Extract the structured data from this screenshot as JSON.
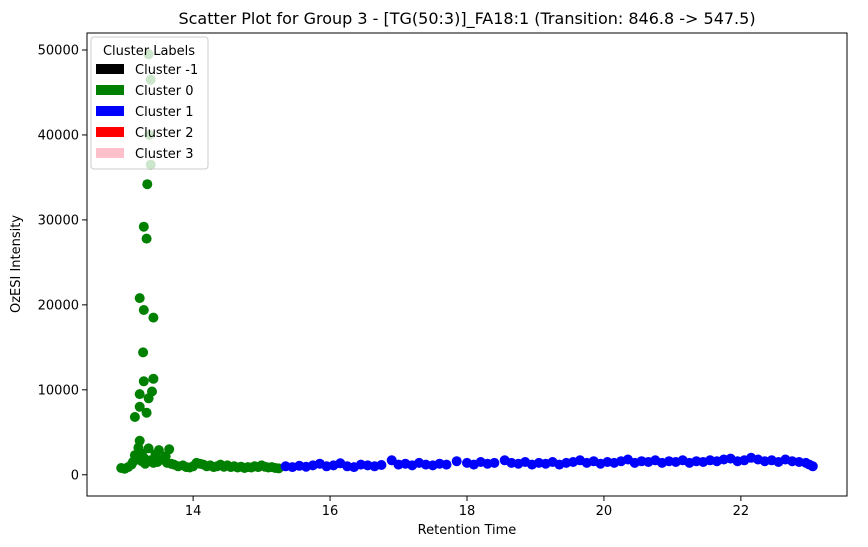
{
  "chart_data": {
    "type": "scatter",
    "title": "Scatter Plot for Group 3 - [TG(50:3)]_FA18:1 (Transition: 846.8 -> 547.5)",
    "xlabel": "Retention Time",
    "ylabel": "OzESI Intensity",
    "xlim": [
      12.45,
      23.55
    ],
    "ylim": [
      -2500,
      52000
    ],
    "xticks": [
      14,
      16,
      18,
      20,
      22
    ],
    "yticks": [
      0,
      10000,
      20000,
      30000,
      40000,
      50000
    ],
    "grid": false,
    "legend": {
      "title": "Cluster Labels",
      "placement": "top-left",
      "entries": [
        {
          "label": "Cluster -1",
          "color": "#000000"
        },
        {
          "label": "Cluster 0",
          "color": "#008000"
        },
        {
          "label": "Cluster 1",
          "color": "#0000ff"
        },
        {
          "label": "Cluster 2",
          "color": "#ff0000"
        },
        {
          "label": "Cluster 3",
          "color": "#ffc0cb"
        }
      ]
    },
    "series": [
      {
        "name": "Cluster 0",
        "color": "#008000",
        "points": [
          [
            13.35,
            49500
          ],
          [
            13.38,
            46500
          ],
          [
            13.36,
            40000
          ],
          [
            13.38,
            36500
          ],
          [
            13.33,
            34200
          ],
          [
            13.28,
            29200
          ],
          [
            13.32,
            27800
          ],
          [
            13.22,
            20800
          ],
          [
            13.28,
            19400
          ],
          [
            13.42,
            18500
          ],
          [
            13.27,
            14400
          ],
          [
            13.28,
            11000
          ],
          [
            13.42,
            11300
          ],
          [
            13.4,
            9800
          ],
          [
            13.22,
            9500
          ],
          [
            13.35,
            9000
          ],
          [
            13.22,
            8000
          ],
          [
            13.32,
            7300
          ],
          [
            13.15,
            6800
          ],
          [
            13.22,
            4000
          ],
          [
            13.2,
            3200
          ],
          [
            13.35,
            3100
          ],
          [
            13.5,
            2900
          ],
          [
            13.65,
            3000
          ],
          [
            13.15,
            2300
          ],
          [
            13.25,
            2500
          ],
          [
            13.45,
            2400
          ],
          [
            13.6,
            2200
          ],
          [
            13.28,
            2000
          ],
          [
            12.95,
            800
          ],
          [
            13.0,
            700
          ],
          [
            13.05,
            900
          ],
          [
            13.1,
            1200
          ],
          [
            13.12,
            1500
          ],
          [
            13.18,
            1800
          ],
          [
            13.25,
            1600
          ],
          [
            13.3,
            1300
          ],
          [
            13.38,
            1700
          ],
          [
            13.42,
            1400
          ],
          [
            13.48,
            1500
          ],
          [
            13.55,
            1800
          ],
          [
            13.62,
            1400
          ],
          [
            13.68,
            1300
          ],
          [
            13.72,
            1200
          ],
          [
            13.78,
            1000
          ],
          [
            13.85,
            1100
          ],
          [
            13.9,
            900
          ],
          [
            13.95,
            850
          ],
          [
            14.0,
            1000
          ],
          [
            14.05,
            1400
          ],
          [
            14.1,
            1300
          ],
          [
            14.15,
            1200
          ],
          [
            14.2,
            1000
          ],
          [
            14.25,
            1100
          ],
          [
            14.3,
            900
          ],
          [
            14.35,
            1000
          ],
          [
            14.4,
            1200
          ],
          [
            14.45,
            950
          ],
          [
            14.5,
            1100
          ],
          [
            14.55,
            900
          ],
          [
            14.6,
            1000
          ],
          [
            14.65,
            850
          ],
          [
            14.7,
            950
          ],
          [
            14.75,
            800
          ],
          [
            14.8,
            900
          ],
          [
            14.85,
            850
          ],
          [
            14.9,
            1000
          ],
          [
            14.95,
            900
          ],
          [
            15.0,
            1100
          ],
          [
            15.05,
            950
          ],
          [
            15.1,
            850
          ],
          [
            15.15,
            900
          ],
          [
            15.2,
            800
          ],
          [
            15.25,
            750
          ]
        ]
      },
      {
        "name": "Cluster 1",
        "color": "#0000ff",
        "points": [
          [
            15.35,
            1000
          ],
          [
            15.45,
            900
          ],
          [
            15.55,
            1050
          ],
          [
            15.65,
            950
          ],
          [
            15.75,
            1100
          ],
          [
            15.85,
            1300
          ],
          [
            15.95,
            1000
          ],
          [
            16.05,
            1100
          ],
          [
            16.15,
            1350
          ],
          [
            16.25,
            1000
          ],
          [
            16.35,
            900
          ],
          [
            16.45,
            1200
          ],
          [
            16.55,
            1100
          ],
          [
            16.65,
            1000
          ],
          [
            16.75,
            1150
          ],
          [
            16.9,
            1700
          ],
          [
            17.0,
            1200
          ],
          [
            17.1,
            1300
          ],
          [
            17.2,
            1100
          ],
          [
            17.3,
            1400
          ],
          [
            17.4,
            1200
          ],
          [
            17.5,
            1100
          ],
          [
            17.6,
            1300
          ],
          [
            17.7,
            1200
          ],
          [
            17.85,
            1600
          ],
          [
            18.0,
            1400
          ],
          [
            18.1,
            1200
          ],
          [
            18.2,
            1500
          ],
          [
            18.3,
            1300
          ],
          [
            18.4,
            1400
          ],
          [
            18.55,
            1700
          ],
          [
            18.65,
            1400
          ],
          [
            18.75,
            1300
          ],
          [
            18.85,
            1500
          ],
          [
            18.95,
            1200
          ],
          [
            19.05,
            1400
          ],
          [
            19.15,
            1300
          ],
          [
            19.25,
            1500
          ],
          [
            19.35,
            1200
          ],
          [
            19.45,
            1400
          ],
          [
            19.55,
            1500
          ],
          [
            19.65,
            1700
          ],
          [
            19.75,
            1400
          ],
          [
            19.85,
            1600
          ],
          [
            19.95,
            1300
          ],
          [
            20.05,
            1500
          ],
          [
            20.15,
            1400
          ],
          [
            20.25,
            1600
          ],
          [
            20.35,
            1800
          ],
          [
            20.45,
            1400
          ],
          [
            20.55,
            1600
          ],
          [
            20.65,
            1500
          ],
          [
            20.75,
            1700
          ],
          [
            20.85,
            1400
          ],
          [
            20.95,
            1600
          ],
          [
            21.05,
            1500
          ],
          [
            21.15,
            1700
          ],
          [
            21.25,
            1400
          ],
          [
            21.35,
            1600
          ],
          [
            21.45,
            1500
          ],
          [
            21.55,
            1700
          ],
          [
            21.65,
            1600
          ],
          [
            21.75,
            1800
          ],
          [
            21.85,
            1900
          ],
          [
            21.95,
            1600
          ],
          [
            22.05,
            1700
          ],
          [
            22.15,
            2000
          ],
          [
            22.25,
            1800
          ],
          [
            22.35,
            1600
          ],
          [
            22.45,
            1700
          ],
          [
            22.55,
            1500
          ],
          [
            22.65,
            1800
          ],
          [
            22.75,
            1600
          ],
          [
            22.85,
            1500
          ],
          [
            22.95,
            1400
          ],
          [
            23.0,
            1200
          ],
          [
            23.05,
            1000
          ]
        ]
      }
    ]
  }
}
